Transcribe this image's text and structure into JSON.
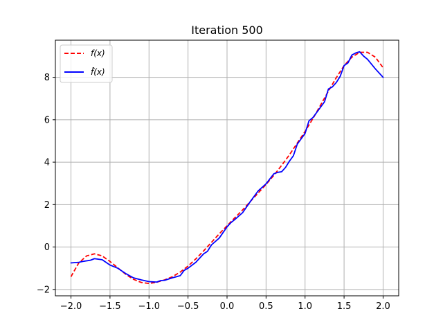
{
  "chart_data": {
    "type": "line",
    "title": "Iteration 500",
    "xlabel": "",
    "ylabel": "",
    "xlim": [
      -2.2,
      2.2
    ],
    "ylim": [
      -2.3,
      9.75
    ],
    "xticks": [
      -2.0,
      -1.5,
      -1.0,
      -0.5,
      0.0,
      0.5,
      1.0,
      1.5,
      2.0
    ],
    "xtick_labels": [
      "−2.0",
      "−1.5",
      "−1.0",
      "−0.5",
      "0.0",
      "0.5",
      "1.0",
      "1.5",
      "2.0"
    ],
    "yticks": [
      -2,
      0,
      2,
      4,
      6,
      8
    ],
    "ytick_labels": [
      "−2",
      "0",
      "2",
      "4",
      "6",
      "8"
    ],
    "grid": true,
    "legend_position": "upper-left",
    "series": [
      {
        "name": "f(x)",
        "color": "#ff0000",
        "dash": "dashed",
        "x": [
          -2.0,
          -1.9,
          -1.8,
          -1.7,
          -1.6,
          -1.5,
          -1.4,
          -1.3,
          -1.2,
          -1.1,
          -1.0,
          -0.9,
          -0.8,
          -0.7,
          -0.6,
          -0.5,
          -0.4,
          -0.3,
          -0.2,
          -0.1,
          0.0,
          0.1,
          0.2,
          0.3,
          0.4,
          0.5,
          0.6,
          0.7,
          0.8,
          0.9,
          1.0,
          1.1,
          1.2,
          1.3,
          1.4,
          1.5,
          1.6,
          1.7,
          1.8,
          1.9,
          2.0
        ],
        "values": [
          -1.4,
          -0.75,
          -0.42,
          -0.32,
          -0.42,
          -0.68,
          -0.98,
          -1.28,
          -1.52,
          -1.67,
          -1.72,
          -1.66,
          -1.55,
          -1.4,
          -1.18,
          -0.9,
          -0.56,
          -0.18,
          0.22,
          0.62,
          1.0,
          1.38,
          1.75,
          2.15,
          2.55,
          2.95,
          3.38,
          3.85,
          4.35,
          4.9,
          5.45,
          6.05,
          6.7,
          7.35,
          7.98,
          8.55,
          8.95,
          9.18,
          9.18,
          8.95,
          8.45
        ]
      },
      {
        "name": "f̂(x)",
        "color": "#0000ff",
        "dash": "solid",
        "x": [
          -2.0,
          -1.9,
          -1.85,
          -1.8,
          -1.75,
          -1.7,
          -1.6,
          -1.5,
          -1.4,
          -1.3,
          -1.2,
          -1.1,
          -1.0,
          -0.9,
          -0.85,
          -0.8,
          -0.7,
          -0.6,
          -0.55,
          -0.5,
          -0.4,
          -0.3,
          -0.25,
          -0.2,
          -0.1,
          0.0,
          0.05,
          0.1,
          0.2,
          0.3,
          0.4,
          0.5,
          0.6,
          0.65,
          0.7,
          0.75,
          0.8,
          0.85,
          0.9,
          0.95,
          1.0,
          1.05,
          1.1,
          1.2,
          1.25,
          1.3,
          1.35,
          1.4,
          1.45,
          1.5,
          1.55,
          1.6,
          1.65,
          1.7,
          1.75,
          1.8,
          1.9,
          2.0
        ],
        "values": [
          -0.75,
          -0.72,
          -0.68,
          -0.65,
          -0.62,
          -0.55,
          -0.6,
          -0.85,
          -1.0,
          -1.25,
          -1.45,
          -1.55,
          -1.63,
          -1.65,
          -1.58,
          -1.57,
          -1.45,
          -1.35,
          -1.1,
          -1.0,
          -0.72,
          -0.32,
          -0.2,
          0.1,
          0.42,
          0.95,
          1.15,
          1.3,
          1.62,
          2.15,
          2.65,
          2.98,
          3.45,
          3.52,
          3.55,
          3.75,
          4.05,
          4.3,
          4.85,
          5.1,
          5.35,
          5.95,
          6.1,
          6.6,
          6.85,
          7.45,
          7.55,
          7.75,
          8.05,
          8.55,
          8.68,
          9.05,
          9.15,
          9.2,
          9.0,
          8.85,
          8.4,
          8.0
        ]
      }
    ]
  }
}
